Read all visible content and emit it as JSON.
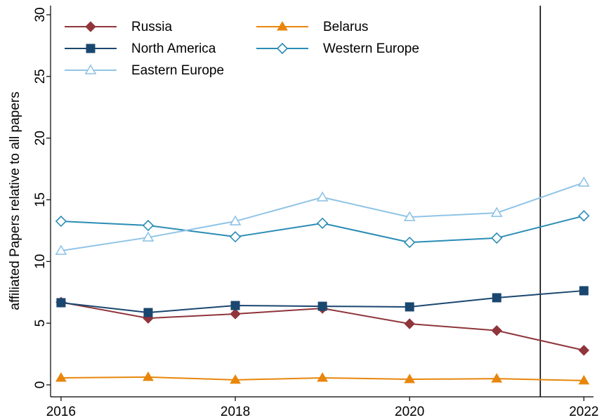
{
  "chart_data": {
    "type": "line",
    "y_label": "affiliated Papers relative to all papers",
    "x": [
      2016,
      2017,
      2018,
      2019,
      2020,
      2021,
      2022
    ],
    "series": [
      {
        "name": "Russia",
        "color": "#8f353b",
        "marker": "diamond",
        "filled": true,
        "values": [
          6.7,
          5.4,
          5.75,
          6.2,
          4.95,
          4.4,
          2.8
        ]
      },
      {
        "name": "Belarus",
        "color": "#e8860c",
        "marker": "triangle",
        "filled": true,
        "values": [
          0.57,
          0.63,
          0.4,
          0.57,
          0.45,
          0.5,
          0.35
        ]
      },
      {
        "name": "North America",
        "color": "#1a476f",
        "marker": "square",
        "filled": true,
        "values": [
          6.66,
          5.86,
          6.43,
          6.37,
          6.32,
          7.06,
          7.63
        ]
      },
      {
        "name": "Western Europe",
        "color": "#2a8cb5",
        "marker": "diamond",
        "filled": false,
        "values": [
          13.26,
          12.92,
          12.0,
          13.1,
          11.55,
          11.9,
          13.7
        ]
      },
      {
        "name": "Eastern Europe",
        "color": "#90c4e6",
        "marker": "triangle",
        "filled": false,
        "values": [
          10.87,
          11.95,
          13.26,
          15.2,
          13.6,
          13.94,
          16.4
        ]
      }
    ],
    "xlim": [
      2015.88,
      2022.11
    ],
    "xticks": [
      2016,
      2018,
      2020,
      2022
    ],
    "ylim": [
      -0.97,
      30.74
    ],
    "yticks": [
      0,
      5,
      10,
      15,
      20,
      25,
      30
    ],
    "vline": 2021.5,
    "grid": false,
    "legend": "top-left"
  }
}
